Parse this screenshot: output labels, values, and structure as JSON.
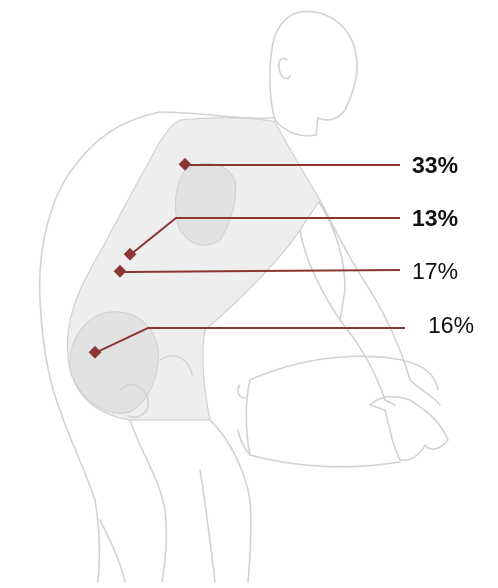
{
  "callouts": [
    {
      "label": "33%",
      "bold": true
    },
    {
      "label": "13%",
      "bold": true
    },
    {
      "label": "17%",
      "bold": false
    },
    {
      "label": "16%",
      "bold": false
    }
  ]
}
